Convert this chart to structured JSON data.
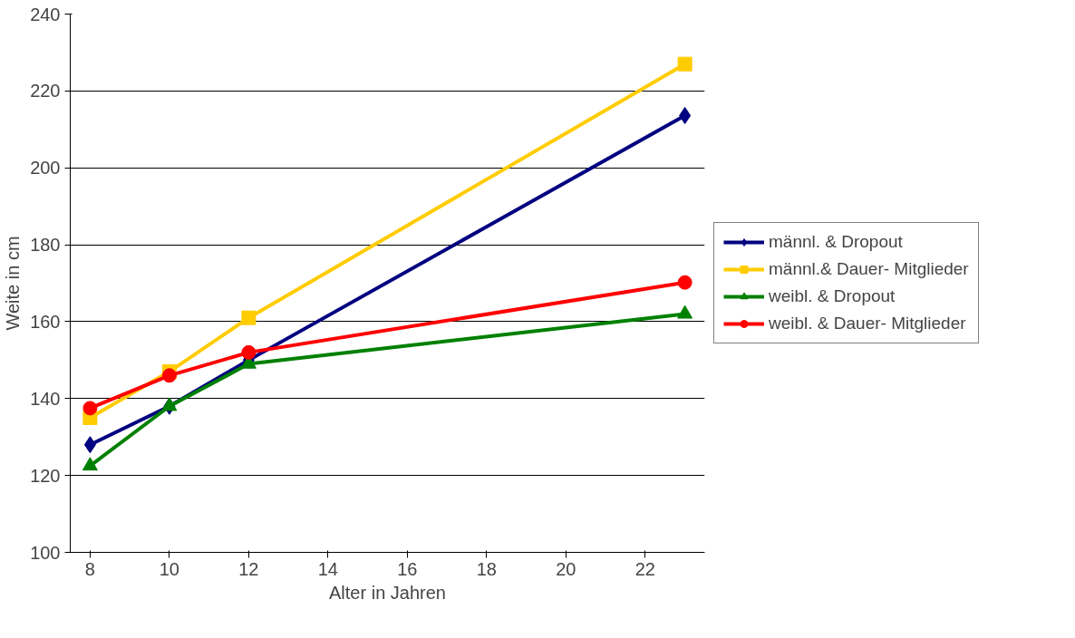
{
  "chart_data": {
    "type": "line",
    "xlabel": "Alter in Jahren",
    "ylabel": "Weite in cm",
    "x": [
      8,
      10,
      12,
      23
    ],
    "xlim": [
      7.5,
      23.5
    ],
    "xticks": [
      8,
      10,
      12,
      14,
      16,
      18,
      20,
      22
    ],
    "ylim": [
      100,
      240
    ],
    "yticks": [
      100,
      120,
      140,
      160,
      180,
      200,
      220,
      240
    ],
    "grid": "y",
    "legend": "right",
    "line_style": "solid",
    "series": [
      {
        "name": "männl. & Dropout",
        "color": "#000080",
        "marker": "diamond",
        "values": [
          128,
          138,
          150,
          213.6
        ]
      },
      {
        "name": "männl.& Dauer- Mitglieder",
        "color": "#ffcc00",
        "marker": "square",
        "values": [
          135,
          147,
          161,
          227
        ]
      },
      {
        "name": "weibl. & Dropout",
        "color": "#008000",
        "marker": "triangle",
        "values": [
          122.5,
          138,
          149,
          162
        ]
      },
      {
        "name": "weibl. & Dauer- Mitglieder",
        "color": "#ff0000",
        "marker": "circle",
        "values": [
          137.5,
          146,
          152,
          170.2
        ]
      }
    ]
  }
}
